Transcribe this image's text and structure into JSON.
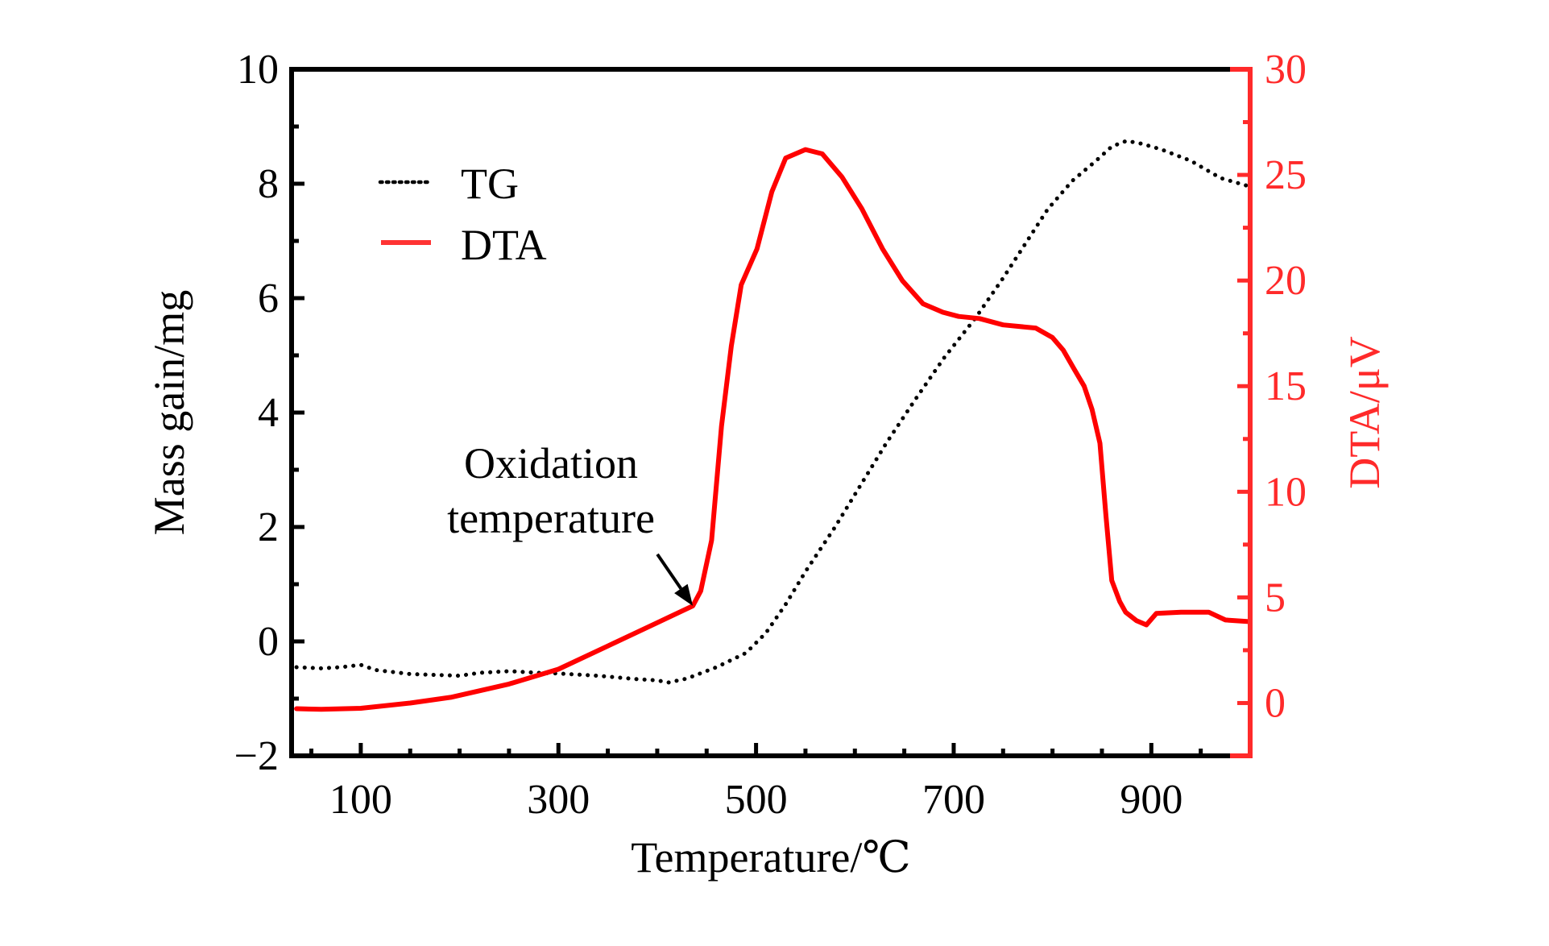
{
  "chart_data": {
    "type": "line",
    "title": "",
    "xlabel": "Temperature/℃",
    "ylabel": "Mass gain/mg",
    "y2label": "DTA/μV",
    "xlim": [
      30,
      1000
    ],
    "ylim": [
      -2,
      10
    ],
    "y2lim": [
      -2.5,
      30
    ],
    "grid": false,
    "legend_position": "top-left",
    "x_ticks": [
      100,
      300,
      500,
      700,
      900
    ],
    "x_minor_ticks": [
      50,
      150,
      200,
      250,
      350,
      400,
      450,
      550,
      600,
      650,
      750,
      800,
      850,
      950
    ],
    "y_ticks": [
      -2,
      0,
      2,
      4,
      6,
      8,
      10
    ],
    "y_tick_labels": [
      "−2",
      "0",
      "2",
      "4",
      "6",
      "8",
      "10"
    ],
    "y_minor_ticks": [
      -1,
      1,
      3,
      5,
      7,
      9
    ],
    "y2_ticks": [
      0,
      5,
      10,
      15,
      20,
      25,
      30
    ],
    "y2_minor_ticks": [
      2.5,
      7.5,
      12.5,
      17.5,
      22.5,
      27.5
    ],
    "colors": {
      "TG": "#000000",
      "DTA": "#ff0000",
      "right_axis": "#ff2a2a",
      "left_axis": "#000000"
    },
    "series": [
      {
        "name": "TG",
        "axis": "left",
        "style": "dotted",
        "color": "#000000",
        "x": [
          35,
          60,
          80,
          100,
          115,
          150,
          200,
          220,
          250,
          280,
          300,
          340,
          380,
          400,
          411,
          430,
          460,
          490,
          510,
          530,
          550,
          580,
          610,
          632,
          660,
          690,
          722,
          750,
          795,
          820,
          844,
          860,
          875,
          890,
          910,
          940,
          970,
          1000
        ],
        "values": [
          -0.45,
          -0.47,
          -0.45,
          -0.41,
          -0.5,
          -0.57,
          -0.6,
          -0.55,
          -0.52,
          -0.55,
          -0.56,
          -0.6,
          -0.66,
          -0.68,
          -0.72,
          -0.65,
          -0.45,
          -0.2,
          0.15,
          0.65,
          1.22,
          2.0,
          2.85,
          3.47,
          4.2,
          4.95,
          5.65,
          6.35,
          7.55,
          8.05,
          8.4,
          8.65,
          8.75,
          8.7,
          8.6,
          8.4,
          8.1,
          7.95
        ]
      },
      {
        "name": "DTA",
        "axis": "right",
        "style": "solid",
        "color": "#ff0000",
        "x": [
          35,
          60,
          100,
          150,
          191,
          250,
          300,
          350,
          400,
          436,
          444,
          455,
          465,
          475,
          485,
          501,
          516,
          530,
          550,
          567,
          587,
          607,
          628,
          648,
          669,
          689,
          705,
          726,
          750,
          783,
          800,
          811,
          822,
          832,
          840,
          848,
          854,
          860,
          868,
          874,
          885,
          895,
          905,
          930,
          958,
          975,
          1000
        ],
        "values": [
          -0.27,
          -0.3,
          -0.25,
          0.0,
          0.27,
          0.9,
          1.6,
          2.7,
          3.8,
          4.6,
          5.3,
          7.7,
          13.1,
          16.9,
          19.8,
          21.5,
          24.2,
          25.8,
          26.2,
          26.0,
          24.9,
          23.4,
          21.5,
          20.0,
          18.9,
          18.5,
          18.3,
          18.2,
          17.9,
          17.75,
          17.3,
          16.7,
          15.8,
          15.0,
          13.9,
          12.3,
          8.9,
          5.8,
          4.8,
          4.3,
          3.9,
          3.7,
          4.24,
          4.3,
          4.3,
          3.93,
          3.85
        ]
      }
    ],
    "annotations": [
      {
        "text_lines": [
          "Oxidation",
          "temperature"
        ],
        "arrow_target": {
          "x": 436,
          "series": "DTA",
          "value": 4.6
        }
      }
    ]
  }
}
